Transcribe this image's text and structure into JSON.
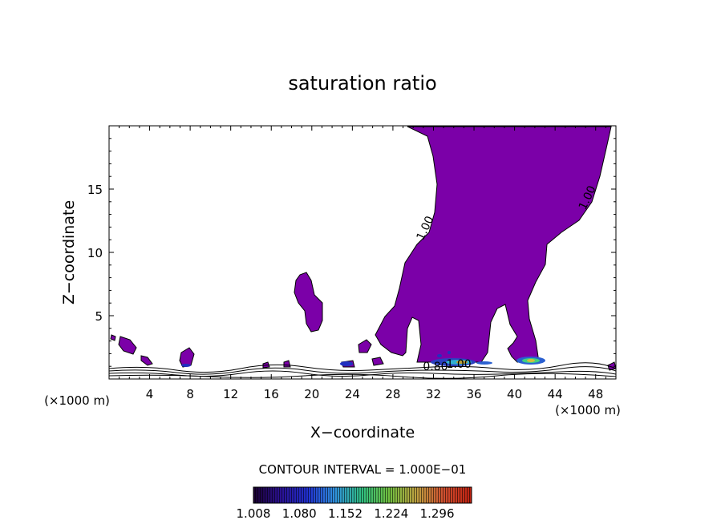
{
  "chart_data": {
    "type": "contour",
    "title": "saturation ratio",
    "xlabel": "X−coordinate",
    "ylabel": "Z−coordinate",
    "x_unit_left": "(×1000 m)",
    "x_unit_right": "(×1000 m)",
    "xlim": [
      0,
      50
    ],
    "ylim": [
      0,
      20
    ],
    "x_ticks": [
      4,
      8,
      12,
      16,
      20,
      24,
      28,
      32,
      36,
      40,
      44,
      48
    ],
    "y_ticks": [
      5,
      10,
      15
    ],
    "x_tick_labels": [
      "4",
      "8",
      "12",
      "16",
      "20",
      "24",
      "28",
      "32",
      "36",
      "40",
      "44",
      "48"
    ],
    "y_tick_labels": [
      "5",
      "10",
      "15"
    ],
    "contour_labels": [
      {
        "text": "1.00",
        "x": 31.5,
        "y": 11.8
      },
      {
        "text": "1.00",
        "x": 47.5,
        "y": 14.2
      },
      {
        "text": "1.00",
        "x": 34.5,
        "y": 0.9
      },
      {
        "text": "0.80",
        "x": 32.2,
        "y": 0.7
      }
    ],
    "contour_interval_label": "CONTOUR INTERVAL = 1.000E−01",
    "colorbar": {
      "min": 1.008,
      "max": 1.35,
      "tick_labels": [
        "1.008",
        "1.080",
        "1.152",
        "1.224",
        "1.296"
      ]
    },
    "colors": {
      "supersaturated_fill": "#7b00a8",
      "contour_line": "#000000"
    }
  }
}
